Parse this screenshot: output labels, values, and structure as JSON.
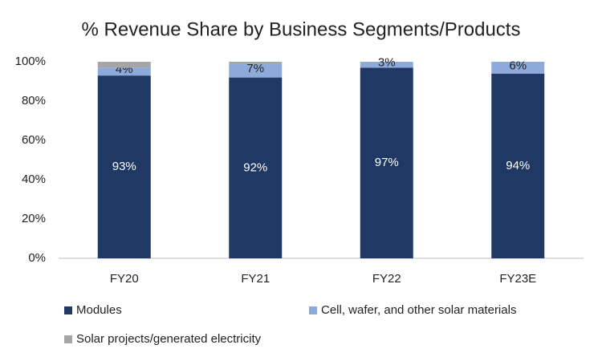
{
  "chart_data": {
    "type": "stacked_bar",
    "title": "% Revenue Share by Business Segments/Products",
    "categories": [
      "FY20",
      "FY21",
      "FY22",
      "FY23E"
    ],
    "series": [
      {
        "name": "Modules",
        "color": "#1f3864",
        "values": [
          93,
          92,
          97,
          94
        ],
        "value_labels": [
          "93%",
          "92%",
          "97%",
          "94%"
        ]
      },
      {
        "name": "Cell, wafer, and other solar materials",
        "color": "#8eaadb",
        "values": [
          4,
          7,
          3,
          6
        ],
        "value_labels": [
          "4%",
          "7%",
          "3%",
          "6%"
        ]
      },
      {
        "name": "Solar projects/generated electricity",
        "color": "#a5a5a5",
        "values": [
          3,
          1,
          0,
          0
        ]
      }
    ],
    "ylim": [
      0,
      100
    ],
    "yticks": [
      {
        "value": 0,
        "label": "0%"
      },
      {
        "value": 20,
        "label": "20%"
      },
      {
        "value": 40,
        "label": "40%"
      },
      {
        "value": 60,
        "label": "60%"
      },
      {
        "value": 80,
        "label": "80%"
      },
      {
        "value": 100,
        "label": "100%"
      }
    ],
    "grid": false,
    "legend": "bottom"
  }
}
